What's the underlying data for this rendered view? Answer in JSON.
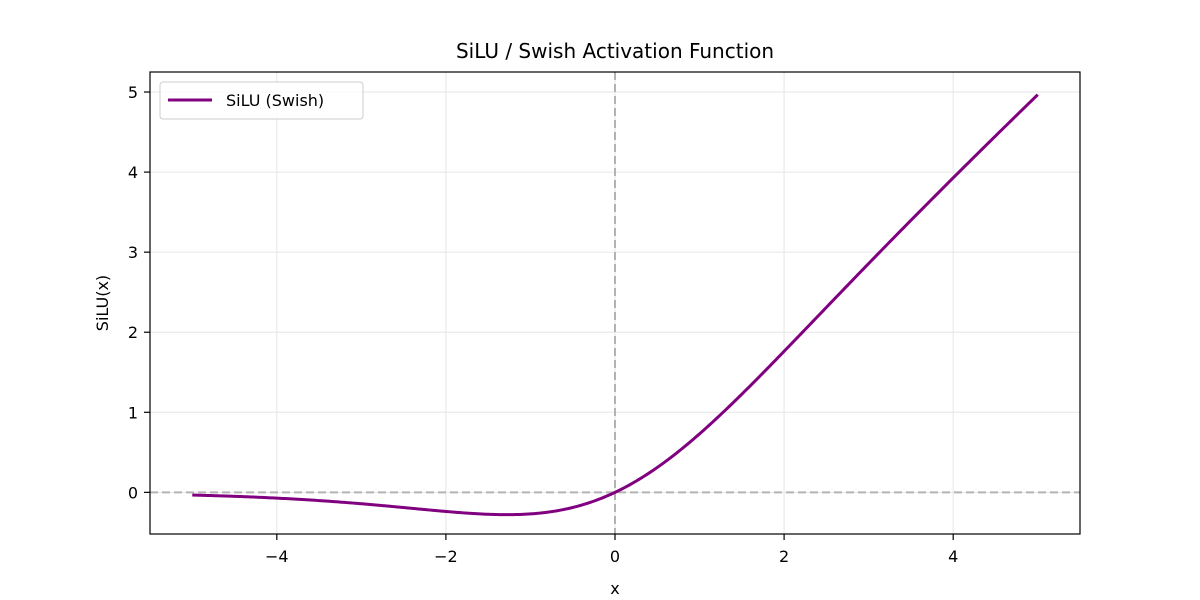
{
  "chart_data": {
    "type": "line",
    "title": "SiLU / Swish Activation Function",
    "xlabel": "x",
    "ylabel": "SiLU(x)",
    "xlim": [
      -5.5,
      5.5
    ],
    "ylim": [
      -0.52,
      5.25
    ],
    "xticks": [
      -4,
      -2,
      0,
      2,
      4
    ],
    "xtick_labels": [
      "−4",
      "−2",
      "0",
      "2",
      "4"
    ],
    "yticks": [
      0,
      1,
      2,
      3,
      4,
      5
    ],
    "ytick_labels": [
      "0",
      "1",
      "2",
      "3",
      "4",
      "5"
    ],
    "grid": true,
    "legend_position": "top-left",
    "reference_lines": [
      {
        "orientation": "horizontal",
        "value": 0,
        "style": "dashed",
        "color": "#b3b3b3"
      },
      {
        "orientation": "vertical",
        "value": 0,
        "style": "dashed",
        "color": "#b3b3b3"
      }
    ],
    "series": [
      {
        "name": "SiLU (Swish)",
        "color": "#800080",
        "function": "x / (1 + exp(-x))",
        "x_range": [
          -5,
          5
        ],
        "x": [
          -5,
          -4.5,
          -4,
          -3.5,
          -3,
          -2.5,
          -2,
          -1.5,
          -1.278,
          -1,
          -0.5,
          0,
          0.5,
          1,
          1.5,
          2,
          2.5,
          3,
          3.5,
          4,
          4.5,
          5
        ],
        "y": [
          -0.0335,
          -0.0493,
          -0.0719,
          -0.1027,
          -0.1423,
          -0.1896,
          -0.2384,
          -0.2736,
          -0.2785,
          -0.2689,
          -0.1888,
          0,
          0.3112,
          0.7311,
          1.2264,
          1.7616,
          2.3104,
          2.8577,
          3.3973,
          3.9281,
          4.4507,
          4.9665
        ]
      }
    ]
  }
}
